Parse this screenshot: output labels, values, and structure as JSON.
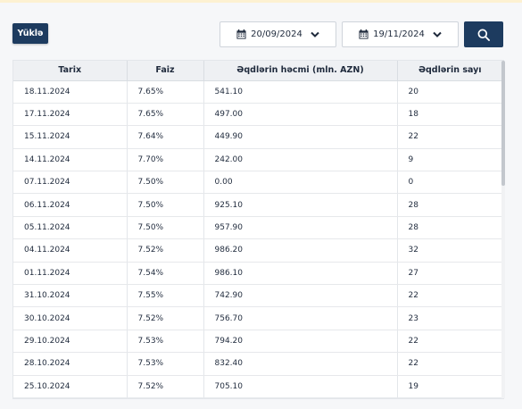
{
  "toolbar": {
    "download_label": "Yüklə",
    "date_from": "20/09/2024",
    "date_to": "19/11/2024",
    "calendar_icon": "calendar-icon",
    "chevron_icon": "chevron-down-icon",
    "search_icon": "search-icon"
  },
  "table": {
    "headers": [
      "Tarix",
      "Faiz",
      "Əqdlərin həcmi (mln. AZN)",
      "Əqdlərin sayı"
    ],
    "rows": [
      [
        "18.11.2024",
        "7.65%",
        "541.10",
        "20"
      ],
      [
        "17.11.2024",
        "7.65%",
        "497.00",
        "18"
      ],
      [
        "15.11.2024",
        "7.64%",
        "449.90",
        "22"
      ],
      [
        "14.11.2024",
        "7.70%",
        "242.00",
        "9"
      ],
      [
        "07.11.2024",
        "7.50%",
        "0.00",
        "0"
      ],
      [
        "06.11.2024",
        "7.50%",
        "925.10",
        "28"
      ],
      [
        "05.11.2024",
        "7.50%",
        "957.90",
        "28"
      ],
      [
        "04.11.2024",
        "7.52%",
        "986.20",
        "32"
      ],
      [
        "01.11.2024",
        "7.54%",
        "986.10",
        "27"
      ],
      [
        "31.10.2024",
        "7.55%",
        "742.90",
        "22"
      ],
      [
        "30.10.2024",
        "7.52%",
        "756.70",
        "23"
      ],
      [
        "29.10.2024",
        "7.53%",
        "794.20",
        "22"
      ],
      [
        "28.10.2024",
        "7.53%",
        "832.40",
        "22"
      ],
      [
        "25.10.2024",
        "7.52%",
        "705.10",
        "19"
      ]
    ]
  },
  "colors": {
    "primary": "#1d3b5f",
    "header_bg": "#eef0f3",
    "page_bg": "#f6f7f9",
    "accent_strip": "#fdf1d2"
  }
}
